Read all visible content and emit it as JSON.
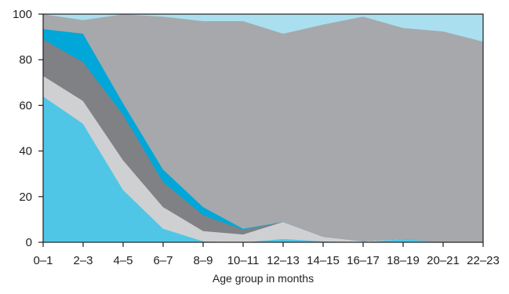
{
  "chart_data": {
    "type": "area",
    "stacked": true,
    "title": "",
    "xlabel": "Age group in months",
    "ylabel": "",
    "categories": [
      "0–1",
      "2–3",
      "4–5",
      "6–7",
      "8–9",
      "10–11",
      "12–13",
      "14–15",
      "16–17",
      "18–19",
      "20–21",
      "22–23"
    ],
    "ylim": [
      0,
      100
    ],
    "yticks": [
      "0",
      "20",
      "40",
      "60",
      "80",
      "100"
    ],
    "grid": false,
    "legend": "none",
    "series": [
      {
        "color": "#4fc6e6",
        "values": [
          64,
          52,
          23,
          6,
          0.5,
          0,
          1.5,
          0.5,
          0,
          1.5,
          0,
          0
        ]
      },
      {
        "color": "#cfd0d2",
        "values": [
          9,
          10,
          13,
          9.5,
          4.5,
          3.5,
          7.5,
          2,
          0.5,
          0,
          0,
          0
        ]
      },
      {
        "color": "#808184",
        "values": [
          16,
          17,
          20,
          11,
          7,
          2,
          0,
          0,
          0,
          0,
          0,
          0
        ]
      },
      {
        "color": "#00a7d8",
        "values": [
          4.5,
          12.5,
          5,
          5.5,
          3.5,
          0.5,
          0,
          0,
          0,
          0,
          0,
          0
        ]
      },
      {
        "color": "#a6a8ab",
        "values": [
          6.5,
          6,
          39,
          67,
          81.5,
          91,
          82.5,
          93,
          98.5,
          92.5,
          92.5,
          88
        ]
      },
      {
        "color": "#aadff0",
        "values": [
          0,
          2.5,
          0,
          1,
          3,
          3,
          8.5,
          4.5,
          1,
          6,
          7.5,
          12
        ]
      }
    ]
  }
}
